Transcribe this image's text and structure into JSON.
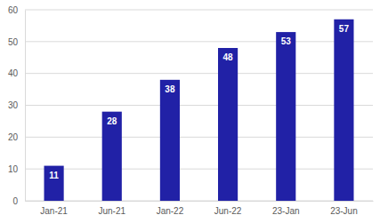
{
  "chart_data": {
    "type": "bar",
    "categories": [
      "Jan-21",
      "Jun-21",
      "Jan-22",
      "Jun-22",
      "23-Jan",
      "23-Jun"
    ],
    "values": [
      11,
      28,
      38,
      48,
      53,
      57
    ],
    "color": "#2121a6",
    "ylim": [
      0,
      60
    ],
    "yticks": [
      0,
      10,
      20,
      30,
      40,
      50,
      60
    ],
    "grid": true,
    "data_labels": true
  }
}
